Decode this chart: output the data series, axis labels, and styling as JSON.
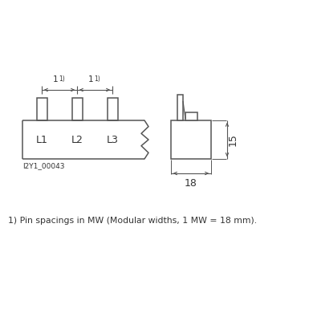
{
  "bg_color": "#ffffff",
  "line_color": "#555555",
  "text_color": "#333333",
  "fig_width": 3.85,
  "fig_height": 3.85,
  "dpi": 100,
  "footnote": "1) Pin spacings in MW (Modular widths, 1 MW = 18 mm).",
  "image_id": "I2Y1_00043",
  "dim_18": "18",
  "dim_15": "15",
  "spacing_label1": "1",
  "spacing_sup1": "1)",
  "L1": "L1",
  "L2": "L2",
  "L3": "L3"
}
